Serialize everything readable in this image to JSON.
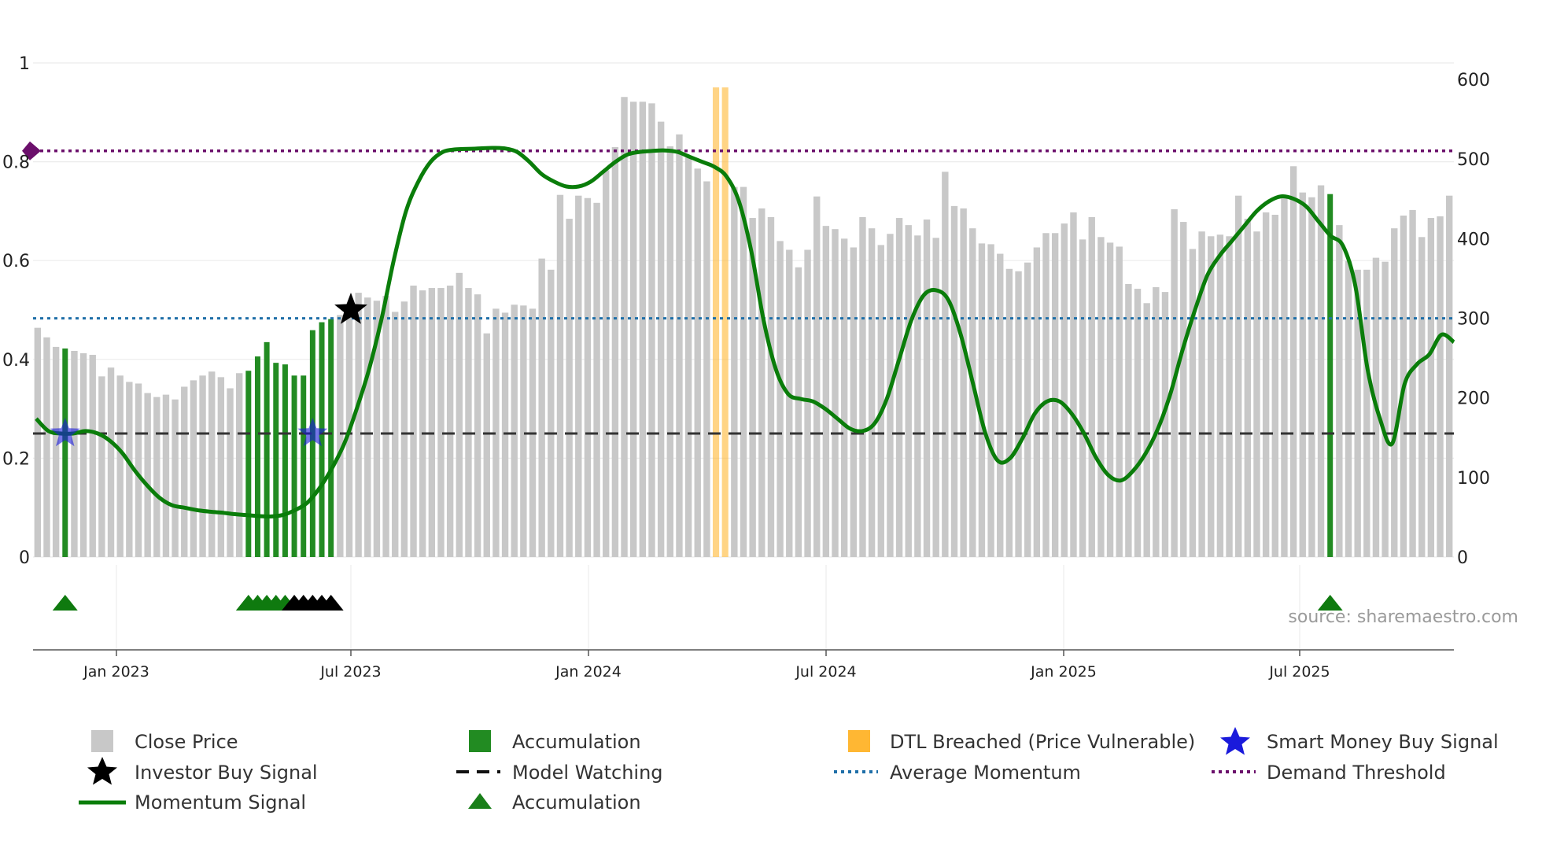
{
  "chart_data": {
    "type": "bar+line",
    "x_ticks": [
      "Jan 2023",
      "Jul 2023",
      "Jan 2024",
      "Jul 2024",
      "Jan 2025",
      "Jul 2025"
    ],
    "left_axis": {
      "ticks": [
        "0",
        "0.2",
        "0.4",
        "0.6",
        "0.8",
        "1"
      ],
      "ylim": [
        0,
        1
      ]
    },
    "right_axis": {
      "ticks": [
        "0",
        "100",
        "200",
        "300",
        "400",
        "500",
        "600"
      ],
      "ylim": [
        0,
        600
      ]
    },
    "source": "source: sharemaestro.com",
    "close_price": [
      288,
      276,
      264,
      262,
      259,
      256,
      254,
      227,
      238,
      228,
      220,
      218,
      206,
      201,
      204,
      198,
      214,
      222,
      228,
      233,
      226,
      212,
      231,
      234,
      252,
      270,
      244,
      242,
      228,
      228,
      285,
      295,
      299,
      304,
      308,
      332,
      326,
      322,
      328,
      308,
      321,
      341,
      335,
      338,
      338,
      341,
      357,
      338,
      330,
      281,
      312,
      307,
      317,
      316,
      312,
      375,
      361,
      455,
      425,
      454,
      451,
      445,
      486,
      515,
      578,
      572,
      572,
      570,
      547,
      516,
      531,
      502,
      488,
      472,
      437,
      457,
      465,
      465,
      426,
      438,
      427,
      397,
      386,
      364,
      386,
      453,
      416,
      412,
      400,
      389,
      427,
      413,
      392,
      406,
      426,
      417,
      404,
      424,
      401,
      484,
      441,
      438,
      413,
      394,
      393,
      381,
      362,
      359,
      370,
      389,
      407,
      407,
      419,
      433,
      399,
      427,
      402,
      395,
      390,
      343,
      337,
      319,
      339,
      333,
      437,
      421,
      387,
      409,
      403,
      405,
      403,
      454,
      425,
      409,
      433,
      430,
      451,
      491,
      458,
      452,
      467,
      456,
      417,
      372,
      361,
      361,
      376,
      371,
      413,
      429,
      436,
      402,
      426,
      428,
      454
    ],
    "accumulation_bar_indices": [
      3,
      23,
      24,
      25,
      26,
      27,
      28,
      29,
      30,
      31,
      32,
      141
    ],
    "dtl_breached_indices": [
      74,
      75
    ],
    "momentum_signal": [
      0.28,
      0.255,
      0.25,
      0.25,
      0.255,
      0.25,
      0.235,
      0.21,
      0.175,
      0.145,
      0.12,
      0.105,
      0.1,
      0.095,
      0.092,
      0.09,
      0.087,
      0.085,
      0.083,
      0.082,
      0.085,
      0.095,
      0.11,
      0.14,
      0.18,
      0.23,
      0.3,
      0.38,
      0.48,
      0.6,
      0.7,
      0.76,
      0.8,
      0.82,
      0.825,
      0.826,
      0.827,
      0.828,
      0.827,
      0.82,
      0.8,
      0.775,
      0.76,
      0.75,
      0.75,
      0.76,
      0.78,
      0.8,
      0.815,
      0.82,
      0.822,
      0.823,
      0.82,
      0.81,
      0.8,
      0.79,
      0.77,
      0.72,
      0.62,
      0.48,
      0.38,
      0.33,
      0.32,
      0.315,
      0.3,
      0.28,
      0.26,
      0.255,
      0.27,
      0.32,
      0.4,
      0.48,
      0.53,
      0.54,
      0.52,
      0.45,
      0.35,
      0.25,
      0.195,
      0.2,
      0.24,
      0.29,
      0.315,
      0.315,
      0.29,
      0.25,
      0.2,
      0.165,
      0.155,
      0.175,
      0.21,
      0.26,
      0.33,
      0.42,
      0.5,
      0.57,
      0.61,
      0.64,
      0.67,
      0.7,
      0.72,
      0.73,
      0.725,
      0.71,
      0.68,
      0.65,
      0.63,
      0.55,
      0.38,
      0.28,
      0.23,
      0.35,
      0.39,
      0.41,
      0.45,
      0.435
    ],
    "model_watching_level": 0.25,
    "average_momentum": 0.483,
    "demand_threshold": 0.822,
    "smart_money_buy_signal_positions": [
      [
        3,
        0.25
      ],
      [
        30,
        0.25
      ]
    ],
    "investor_buy_signal_positions": [
      [
        34,
        0.5
      ]
    ],
    "accumulation_triangles_green": [
      3,
      23,
      24,
      25,
      26,
      27,
      141
    ],
    "accumulation_triangles_black": [
      28,
      29,
      30,
      31,
      32
    ]
  },
  "legend": {
    "close_price": "Close Price",
    "accumulation_bar": "Accumulation",
    "dtl_breached": "DTL Breached (Price Vulnerable)",
    "smart_money": "Smart Money Buy Signal",
    "investor_buy": "Investor Buy Signal",
    "model_watching": "Model Watching",
    "average_momentum": "Average Momentum",
    "demand_threshold": "Demand Threshold",
    "momentum_signal": "Momentum Signal",
    "accumulation_triangle": "Accumulation"
  },
  "colors": {
    "close_price": "#c8c8c8",
    "accumulation": "#228b22",
    "dtl": "#ffb733",
    "momentum": "#0a7d0a",
    "average_momentum": "#1f6fa8",
    "demand_threshold": "#6b0f6b",
    "smart_money": "#1a1adb",
    "investor": "#000000",
    "model_watching": "#333333"
  }
}
